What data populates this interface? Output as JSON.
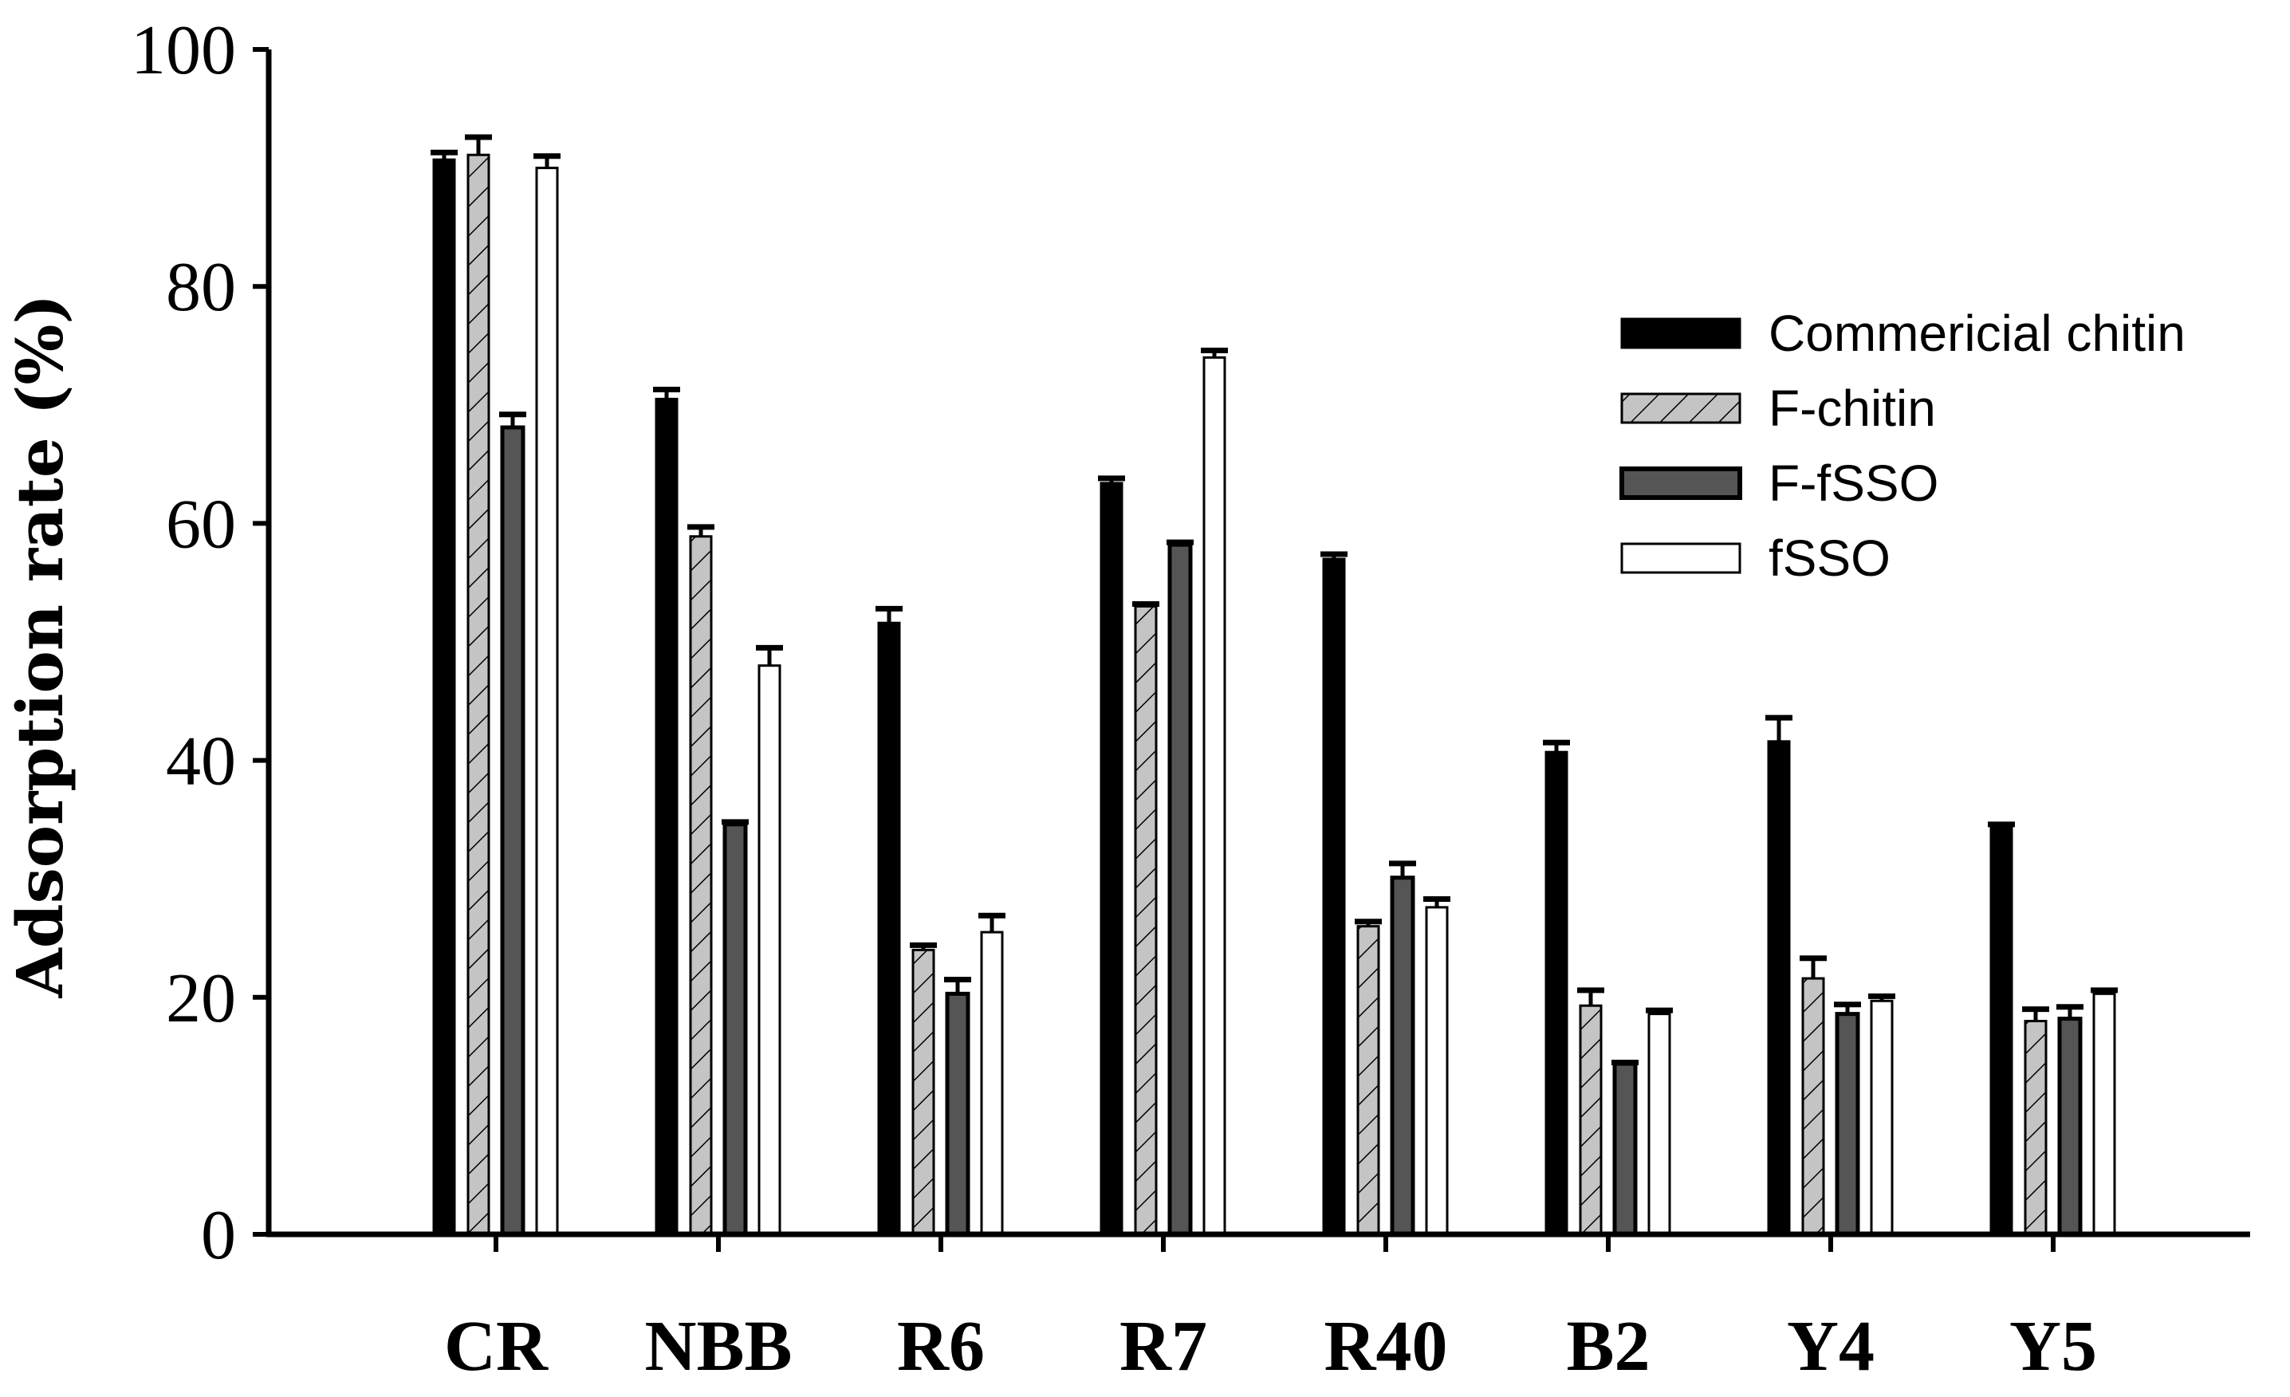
{
  "chart_data": {
    "type": "bar",
    "title": "",
    "xlabel": "",
    "ylabel": "Adsorption rate (%)",
    "ylim": [
      0,
      100
    ],
    "yticks": [
      0,
      20,
      40,
      60,
      80,
      100
    ],
    "grid": false,
    "legend_position": "top-right",
    "categories": [
      "CR",
      "NBB",
      "R6",
      "R7",
      "R40",
      "B2",
      "Y4",
      "Y5"
    ],
    "series": [
      {
        "name": "Commericial chitin",
        "style": "solid-black",
        "values": [
          90.7,
          70.5,
          51.6,
          63.4,
          57.0,
          40.7,
          41.6,
          34.3
        ],
        "errors": [
          0.6,
          0.8,
          1.2,
          0.4,
          0.4,
          0.8,
          2.0,
          0.3
        ]
      },
      {
        "name": "F-chitin",
        "style": "gray-hatched",
        "values": [
          91.1,
          58.9,
          24.0,
          53.0,
          26.0,
          19.3,
          21.6,
          18.0
        ],
        "errors": [
          1.5,
          0.8,
          0.4,
          0.2,
          0.4,
          1.3,
          1.7,
          1.0
        ]
      },
      {
        "name": "F-fSSO",
        "style": "dark-gray",
        "values": [
          68.1,
          34.6,
          20.3,
          58.2,
          30.1,
          14.4,
          18.6,
          18.2
        ],
        "errors": [
          1.1,
          0.2,
          1.2,
          0.2,
          1.2,
          0.1,
          0.8,
          1.0
        ]
      },
      {
        "name": "fSSO",
        "style": "white",
        "values": [
          90.0,
          48.0,
          25.5,
          74.0,
          27.6,
          18.6,
          19.7,
          20.3
        ],
        "errors": [
          1.0,
          1.5,
          1.4,
          0.6,
          0.7,
          0.3,
          0.4,
          0.3
        ]
      }
    ],
    "colors": {
      "solid-black": "#000000",
      "gray-hatched": "#c4c4c4",
      "dark-gray": "#555555",
      "white": "#ffffff",
      "axis": "#000000"
    }
  }
}
